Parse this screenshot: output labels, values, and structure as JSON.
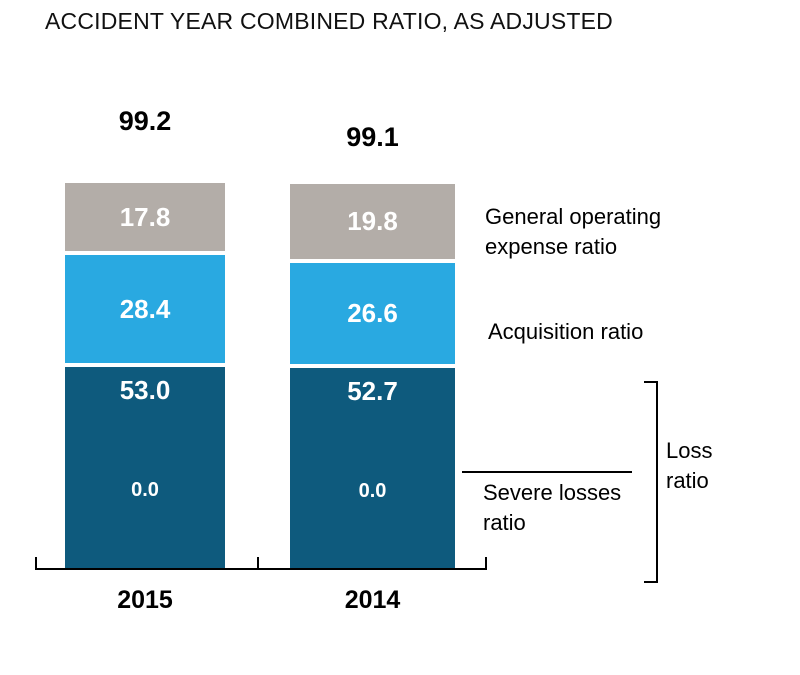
{
  "title": "ACCIDENT YEAR COMBINED RATIO, AS ADJUSTED",
  "colors": {
    "general_operating": "#b3ada8",
    "acquisition": "#29a9e1",
    "loss": "#0e5a7d",
    "text": "#000000",
    "value_text": "#ffffff"
  },
  "bars": [
    {
      "year": "2015",
      "total": "99.2",
      "general": "17.8",
      "acquisition": "28.4",
      "loss": "53.0",
      "severe": "0.0"
    },
    {
      "year": "2014",
      "total": "99.1",
      "general": "19.8",
      "acquisition": "26.6",
      "loss": "52.7",
      "severe": "0.0"
    }
  ],
  "legend": {
    "general_line1": "General operating",
    "general_line2": "expense ratio",
    "acquisition": "Acquisition ratio",
    "severe_line1": "Severe losses",
    "severe_line2": "ratio",
    "loss_line1": "Loss",
    "loss_line2": "ratio"
  },
  "chart_data": {
    "type": "bar",
    "stacked": true,
    "title": "ACCIDENT YEAR COMBINED RATIO, AS ADJUSTED",
    "categories": [
      "2015",
      "2014"
    ],
    "totals": [
      99.2,
      99.1
    ],
    "series": [
      {
        "name": "Loss ratio",
        "values": [
          53.0,
          52.7
        ],
        "color": "#0e5a7d"
      },
      {
        "name": "Severe losses ratio",
        "values": [
          0.0,
          0.0
        ],
        "color": "#0e5a7d"
      },
      {
        "name": "Acquisition ratio",
        "values": [
          28.4,
          26.6
        ],
        "color": "#29a9e1"
      },
      {
        "name": "General operating expense ratio",
        "values": [
          17.8,
          19.8
        ],
        "color": "#b3ada8"
      }
    ],
    "ylim": [
      0,
      100
    ],
    "grid": false,
    "legend_position": "right",
    "value_labels": true
  }
}
